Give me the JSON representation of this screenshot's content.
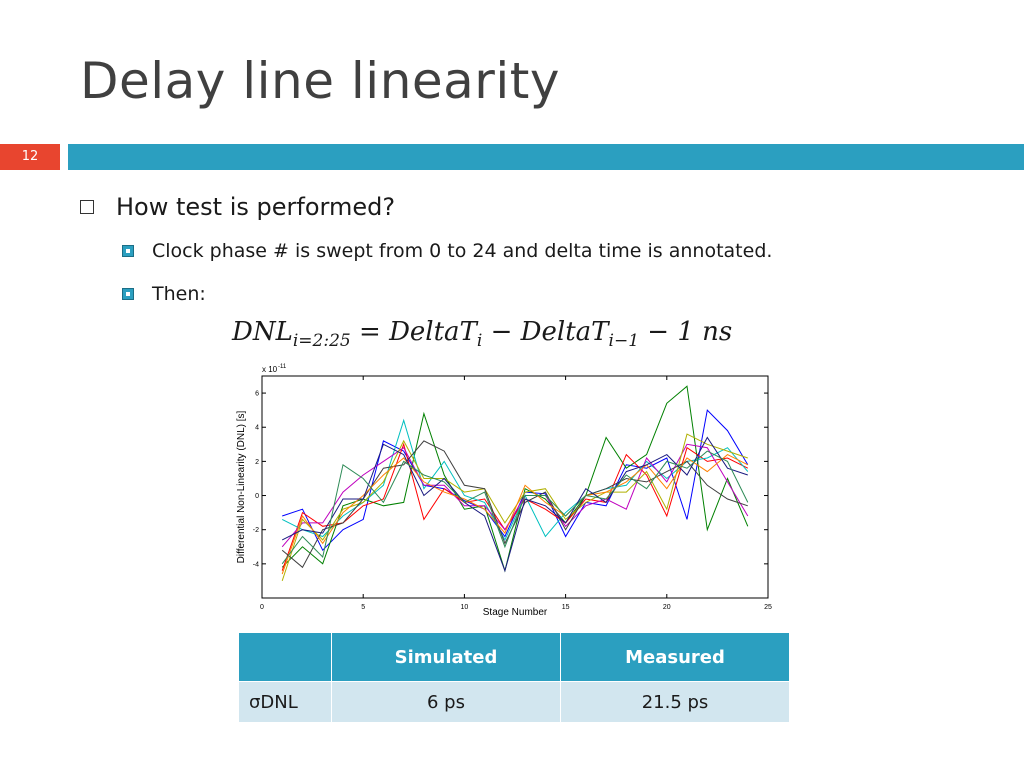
{
  "slide": {
    "title": "Delay line linearity",
    "number": "12"
  },
  "bullets": {
    "b1": "How test is performed?",
    "b2": "Clock phase # is swept from 0 to 24 and delta time is annotated.",
    "b3": "Then:"
  },
  "formula": {
    "lhs": "DNL",
    "lhs_sub": "i=2:25",
    "term1": "DeltaT",
    "term1_sub": "i",
    "term2": "DeltaT",
    "term2_sub": "i−1",
    "tail": "1 ns"
  },
  "chart_data": {
    "type": "line",
    "xlabel": "Stage Number",
    "ylabel": "Differential Non-Linearity (DNL) [s]",
    "y_multiplier": "x 10",
    "y_multiplier_exp": "-11",
    "xlim": [
      0,
      25
    ],
    "ylim": [
      -6,
      7
    ],
    "xticks": [
      0,
      5,
      10,
      15,
      20,
      25
    ],
    "yticks": [
      -4,
      -2,
      0,
      2,
      4,
      6
    ],
    "grid": false,
    "x": [
      1,
      2,
      3,
      4,
      5,
      6,
      7,
      8,
      9,
      10,
      11,
      12,
      13,
      14,
      15,
      16,
      17,
      18,
      19,
      20,
      21,
      22,
      23,
      24
    ],
    "series": [
      {
        "color": "#0000ff",
        "values": [
          -1.2,
          -0.8,
          -3.2,
          -2.0,
          -1.4,
          3.2,
          2.6,
          0.6,
          0.4,
          -0.3,
          -0.8,
          -2.4,
          0.2,
          0.1,
          -2.4,
          -0.4,
          -0.6,
          1.8,
          1.6,
          2.2,
          -1.4,
          5.0,
          3.8,
          1.8
        ]
      },
      {
        "color": "#008000",
        "values": [
          -4.2,
          -3.0,
          -4.0,
          -0.6,
          -0.2,
          -0.6,
          -0.4,
          4.8,
          1.2,
          -0.8,
          -0.6,
          -4.4,
          0.4,
          -0.2,
          -1.6,
          0.0,
          3.4,
          1.6,
          2.4,
          5.4,
          6.4,
          -2.0,
          1.0,
          -1.8
        ]
      },
      {
        "color": "#ff0000",
        "values": [
          -4.4,
          -1.0,
          -1.8,
          -1.6,
          -0.6,
          -0.2,
          3.0,
          -1.4,
          0.4,
          -0.4,
          -0.2,
          -2.0,
          -0.2,
          -0.8,
          -1.6,
          -0.2,
          -0.4,
          2.4,
          1.2,
          -1.2,
          2.8,
          2.0,
          2.2,
          1.6
        ]
      },
      {
        "color": "#00bfbf",
        "values": [
          -1.4,
          -2.0,
          -2.4,
          -1.2,
          -0.4,
          0.6,
          4.4,
          0.4,
          2.0,
          0.0,
          -0.4,
          -2.6,
          0.0,
          -2.4,
          -1.0,
          0.0,
          0.4,
          0.6,
          2.0,
          1.0,
          2.0,
          2.2,
          2.8,
          1.4
        ]
      },
      {
        "color": "#bf00bf",
        "values": [
          -3.0,
          -1.6,
          -1.6,
          0.2,
          1.2,
          2.0,
          2.8,
          0.6,
          0.6,
          -0.6,
          -0.6,
          -2.0,
          0.0,
          0.0,
          -1.8,
          -0.6,
          -0.2,
          -0.8,
          2.2,
          0.8,
          3.0,
          2.8,
          0.8,
          -1.2
        ]
      },
      {
        "color": "#b0b000",
        "values": [
          -5.0,
          -1.4,
          -2.6,
          -0.8,
          -0.4,
          0.8,
          3.2,
          1.0,
          1.0,
          0.2,
          0.4,
          -1.6,
          0.2,
          0.4,
          -1.4,
          -0.4,
          0.2,
          0.2,
          1.4,
          -0.8,
          3.6,
          3.0,
          2.6,
          2.2
        ]
      },
      {
        "color": "#404040",
        "values": [
          -3.2,
          -4.2,
          -2.0,
          -1.6,
          -0.2,
          1.6,
          1.8,
          3.2,
          2.6,
          0.6,
          0.4,
          -2.8,
          -0.4,
          0.2,
          -2.0,
          0.0,
          0.4,
          1.0,
          0.8,
          1.4,
          2.0,
          0.6,
          -0.2,
          -0.6
        ]
      },
      {
        "color": "#ff8000",
        "values": [
          -4.6,
          -1.2,
          -2.8,
          -1.0,
          0.0,
          1.2,
          2.2,
          0.8,
          0.2,
          -0.2,
          -0.8,
          -2.2,
          0.6,
          -0.4,
          -1.2,
          0.0,
          0.2,
          0.8,
          1.8,
          0.4,
          2.2,
          1.4,
          2.4,
          1.8
        ]
      },
      {
        "color": "#1a1a80",
        "values": [
          -2.6,
          -2.0,
          -2.2,
          -0.2,
          -0.2,
          3.0,
          2.4,
          0.0,
          1.0,
          -0.4,
          -1.2,
          -4.4,
          -0.2,
          -0.6,
          -1.6,
          0.4,
          -0.4,
          1.4,
          1.8,
          2.4,
          1.2,
          3.4,
          1.6,
          1.2
        ]
      },
      {
        "color": "#2e8b57",
        "values": [
          -4.0,
          -2.4,
          -3.6,
          1.8,
          1.0,
          -0.4,
          2.0,
          1.2,
          0.8,
          -0.4,
          0.2,
          -3.0,
          0.0,
          0.0,
          -1.2,
          0.0,
          -0.2,
          1.2,
          0.4,
          2.0,
          1.6,
          2.6,
          2.0,
          -0.4
        ]
      }
    ]
  },
  "table": {
    "header_blank": "",
    "col1": "Simulated",
    "col2": "Measured",
    "row_label": "σDNL",
    "sim_value": "6 ps",
    "meas_value": "21.5 ps"
  }
}
